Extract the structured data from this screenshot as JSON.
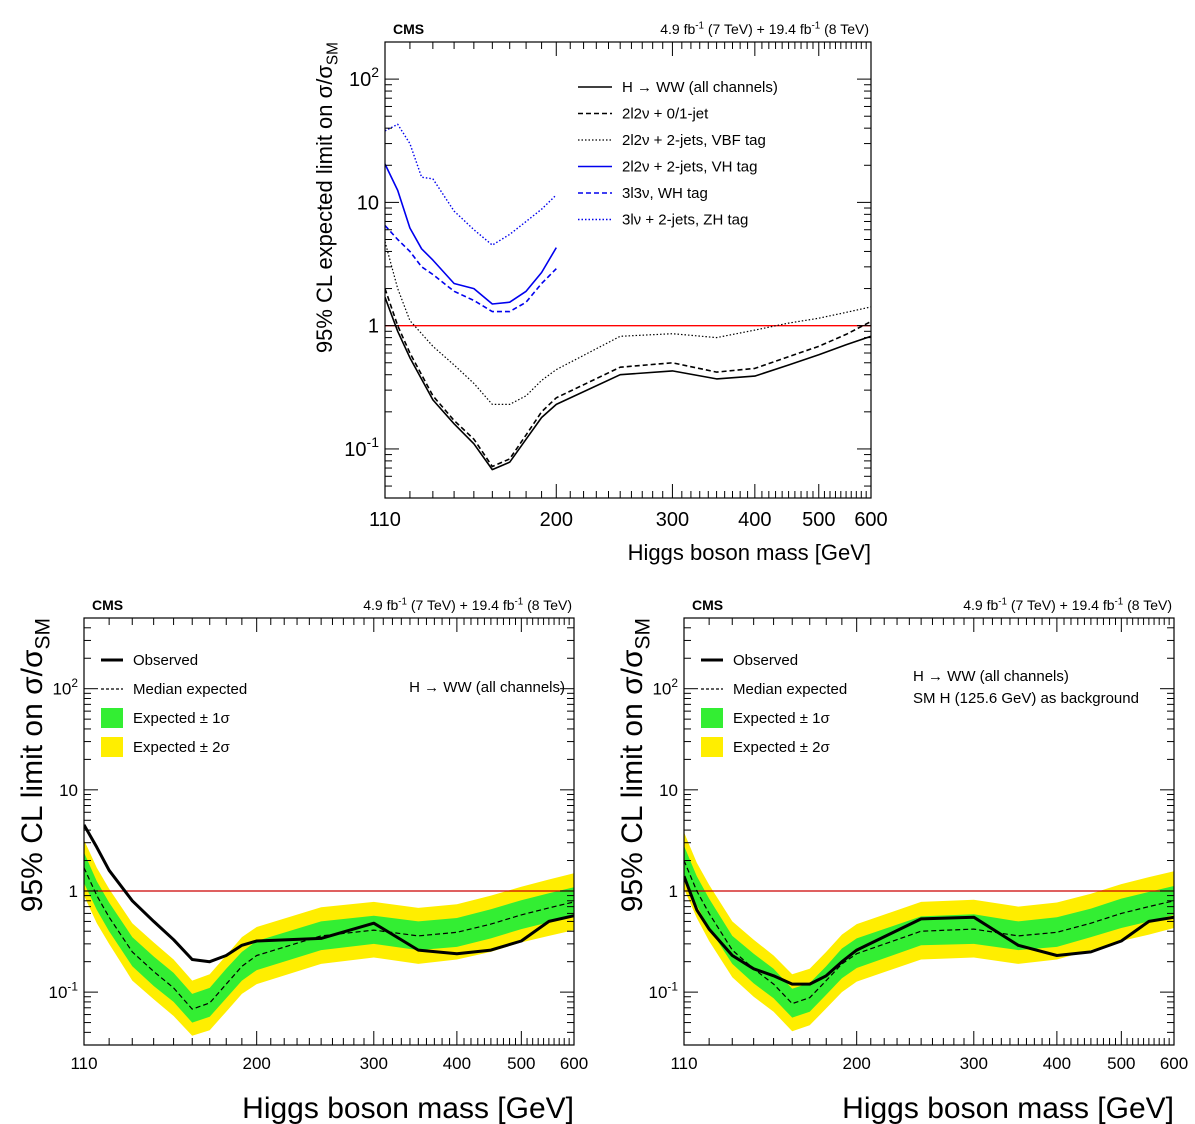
{
  "chart_data": [
    {
      "type": "line",
      "panel": "top",
      "experiment": "CMS",
      "lumi": {
        "part1": "4.9 fb",
        "exp1": "-1",
        "part2": " (7 TeV) + 19.4 fb",
        "exp2": "-1",
        "part3": " (8 TeV)"
      },
      "ylabel": "95% CL expected limit on σ/σ",
      "ylabel_sub": "SM",
      "xlabel": "Higgs boson mass [GeV]",
      "xscale": "log",
      "yscale": "log",
      "xlim": [
        110,
        600
      ],
      "ylim": [
        0.04,
        200
      ],
      "xticklabels": [
        "110",
        "200",
        "300",
        "400",
        "500",
        "600"
      ],
      "yticklabels": [
        {
          "base": "10",
          "exp": "-1"
        },
        {
          "base": "1",
          "exp": ""
        },
        {
          "base": "10",
          "exp": ""
        },
        {
          "base": "10",
          "exp": "2"
        }
      ],
      "reference_line": {
        "y": 1,
        "color": "#ff0000"
      },
      "series": [
        {
          "name": "H → WW (all channels)",
          "color": "#000000",
          "style": "solid",
          "width": 1.6,
          "x": [
            110,
            115,
            120,
            130,
            140,
            150,
            160,
            170,
            180,
            190,
            200,
            250,
            300,
            350,
            400,
            450,
            500,
            550,
            600
          ],
          "y": [
            1.7,
            0.9,
            0.55,
            0.25,
            0.16,
            0.11,
            0.068,
            0.078,
            0.12,
            0.18,
            0.23,
            0.4,
            0.43,
            0.37,
            0.39,
            0.48,
            0.58,
            0.7,
            0.82
          ]
        },
        {
          "name": "2l2ν + 0/1-jet",
          "color": "#000000",
          "style": "dashed",
          "width": 1.6,
          "x": [
            110,
            115,
            120,
            130,
            140,
            150,
            160,
            170,
            180,
            190,
            200,
            250,
            300,
            350,
            400,
            450,
            500,
            550,
            600
          ],
          "y": [
            2.0,
            1.0,
            0.6,
            0.27,
            0.17,
            0.12,
            0.072,
            0.083,
            0.13,
            0.2,
            0.26,
            0.46,
            0.5,
            0.42,
            0.45,
            0.56,
            0.68,
            0.85,
            1.08
          ]
        },
        {
          "name": "2l2ν + 2-jets, VBF tag",
          "color": "#000000",
          "style": "dotted",
          "width": 1.2,
          "x": [
            110,
            115,
            120,
            130,
            140,
            150,
            160,
            170,
            180,
            190,
            200,
            250,
            300,
            350,
            400,
            450,
            500,
            550,
            600
          ],
          "y": [
            4.8,
            2.0,
            1.1,
            0.68,
            0.48,
            0.34,
            0.23,
            0.23,
            0.27,
            0.36,
            0.44,
            0.82,
            0.86,
            0.8,
            0.92,
            1.05,
            1.15,
            1.28,
            1.42
          ]
        },
        {
          "name": "2l2ν + 2-jets, VH tag",
          "color": "#0000ee",
          "style": "solid",
          "width": 1.6,
          "x": [
            110,
            115,
            120,
            125,
            130,
            140,
            150,
            160,
            170,
            180,
            190,
            200
          ],
          "y": [
            20.5,
            12.5,
            6.2,
            4.2,
            3.4,
            2.2,
            2.0,
            1.5,
            1.55,
            1.9,
            2.7,
            4.3
          ]
        },
        {
          "name": "3l3ν, WH tag",
          "color": "#0000ee",
          "style": "dashed",
          "width": 1.6,
          "x": [
            110,
            115,
            120,
            125,
            130,
            140,
            150,
            160,
            170,
            180,
            190,
            200
          ],
          "y": [
            6.5,
            5.0,
            4.0,
            3.0,
            2.6,
            1.9,
            1.6,
            1.3,
            1.3,
            1.55,
            2.2,
            2.9
          ]
        },
        {
          "name": "3lν + 2-jets, ZH tag",
          "color": "#0000ee",
          "style": "dotted",
          "width": 1.4,
          "x": [
            110,
            115,
            120,
            125,
            130,
            140,
            150,
            160,
            170,
            180,
            190,
            200
          ],
          "y": [
            38,
            43,
            30,
            16,
            15.5,
            8.5,
            6.0,
            4.5,
            5.5,
            7.0,
            8.8,
            11.5
          ]
        }
      ]
    },
    {
      "type": "line",
      "panel": "bottom-left",
      "experiment": "CMS",
      "lumi": {
        "part1": "4.9 fb",
        "exp1": "-1",
        "part2": " (7 TeV) + 19.4 fb",
        "exp2": "-1",
        "part3": " (8 TeV)"
      },
      "ylabel": "95% CL limit on σ/σ",
      "ylabel_sub": "SM",
      "xlabel": "Higgs boson mass [GeV]",
      "annotation": [
        "H → WW (all channels)"
      ],
      "xscale": "log",
      "yscale": "log",
      "xlim": [
        110,
        600
      ],
      "ylim": [
        0.03,
        500
      ],
      "xticklabels": [
        "110",
        "200",
        "300",
        "400",
        "500",
        "600"
      ],
      "yticklabels": [
        {
          "base": "10",
          "exp": "-1"
        },
        {
          "base": "1",
          "exp": ""
        },
        {
          "base": "10",
          "exp": ""
        },
        {
          "base": "10",
          "exp": "2"
        }
      ],
      "reference_line": {
        "y": 1,
        "color": "#cc0000"
      },
      "legend": [
        "Observed",
        "Median expected",
        "Expected ± 1σ",
        "Expected ± 2σ"
      ],
      "colors": {
        "band1": "#33ee33",
        "band2": "#ffee00",
        "observed": "#000000",
        "expected": "#000000"
      },
      "x": [
        110,
        115,
        120,
        130,
        140,
        150,
        160,
        170,
        180,
        190,
        200,
        250,
        300,
        350,
        400,
        450,
        500,
        550,
        600
      ],
      "observed": [
        4.5,
        2.7,
        1.6,
        0.8,
        0.5,
        0.33,
        0.21,
        0.2,
        0.23,
        0.29,
        0.32,
        0.34,
        0.48,
        0.26,
        0.24,
        0.26,
        0.32,
        0.5,
        0.57
      ],
      "expected": [
        1.7,
        0.9,
        0.55,
        0.25,
        0.16,
        0.11,
        0.068,
        0.078,
        0.12,
        0.18,
        0.23,
        0.36,
        0.41,
        0.36,
        0.39,
        0.47,
        0.58,
        0.68,
        0.78
      ],
      "band_1sigma_low": [
        1.2,
        0.65,
        0.4,
        0.18,
        0.115,
        0.08,
        0.05,
        0.057,
        0.087,
        0.13,
        0.165,
        0.26,
        0.3,
        0.26,
        0.28,
        0.34,
        0.42,
        0.49,
        0.56
      ],
      "band_1sigma_high": [
        2.4,
        1.25,
        0.77,
        0.35,
        0.225,
        0.155,
        0.096,
        0.11,
        0.17,
        0.25,
        0.32,
        0.5,
        0.57,
        0.5,
        0.54,
        0.66,
        0.81,
        0.95,
        1.09
      ],
      "band_2sigma_low": [
        0.9,
        0.48,
        0.3,
        0.13,
        0.085,
        0.058,
        0.037,
        0.042,
        0.064,
        0.096,
        0.12,
        0.19,
        0.22,
        0.19,
        0.21,
        0.25,
        0.31,
        0.36,
        0.41
      ],
      "band_2sigma_high": [
        3.2,
        1.7,
        1.05,
        0.48,
        0.31,
        0.21,
        0.13,
        0.15,
        0.23,
        0.35,
        0.44,
        0.69,
        0.78,
        0.68,
        0.74,
        0.9,
        1.1,
        1.3,
        1.5
      ]
    },
    {
      "type": "line",
      "panel": "bottom-right",
      "experiment": "CMS",
      "lumi": {
        "part1": "4.9 fb",
        "exp1": "-1",
        "part2": " (7 TeV) + 19.4 fb",
        "exp2": "-1",
        "part3": " (8 TeV)"
      },
      "ylabel": "95% CL limit on σ/σ",
      "ylabel_sub": "SM",
      "xlabel": "Higgs boson mass [GeV]",
      "annotation": [
        "H → WW (all channels)",
        "SM H (125.6 GeV) as background"
      ],
      "xscale": "log",
      "yscale": "log",
      "xlim": [
        110,
        600
      ],
      "ylim": [
        0.03,
        500
      ],
      "xticklabels": [
        "110",
        "200",
        "300",
        "400",
        "500",
        "600"
      ],
      "yticklabels": [
        {
          "base": "10",
          "exp": "-1"
        },
        {
          "base": "1",
          "exp": ""
        },
        {
          "base": "10",
          "exp": ""
        },
        {
          "base": "10",
          "exp": "2"
        }
      ],
      "reference_line": {
        "y": 1,
        "color": "#cc0000"
      },
      "legend": [
        "Observed",
        "Median expected",
        "Expected ± 1σ",
        "Expected ± 2σ"
      ],
      "colors": {
        "band1": "#33ee33",
        "band2": "#ffee00",
        "observed": "#000000",
        "expected": "#000000"
      },
      "x": [
        110,
        115,
        120,
        130,
        140,
        150,
        160,
        170,
        180,
        190,
        200,
        250,
        300,
        350,
        400,
        450,
        500,
        550,
        600
      ],
      "observed": [
        1.4,
        0.65,
        0.42,
        0.23,
        0.17,
        0.145,
        0.12,
        0.12,
        0.145,
        0.2,
        0.26,
        0.53,
        0.55,
        0.29,
        0.23,
        0.25,
        0.32,
        0.5,
        0.55
      ],
      "expected": [
        2.0,
        1.0,
        0.6,
        0.26,
        0.17,
        0.12,
        0.077,
        0.088,
        0.13,
        0.19,
        0.24,
        0.4,
        0.42,
        0.36,
        0.39,
        0.48,
        0.6,
        0.7,
        0.8
      ],
      "band_1sigma_low": [
        1.4,
        0.72,
        0.43,
        0.19,
        0.122,
        0.087,
        0.056,
        0.064,
        0.094,
        0.137,
        0.173,
        0.29,
        0.3,
        0.26,
        0.28,
        0.35,
        0.43,
        0.5,
        0.58
      ],
      "band_1sigma_high": [
        2.8,
        1.4,
        0.84,
        0.36,
        0.24,
        0.17,
        0.108,
        0.123,
        0.18,
        0.27,
        0.34,
        0.56,
        0.59,
        0.5,
        0.55,
        0.67,
        0.84,
        0.98,
        1.12
      ],
      "band_2sigma_low": [
        1.05,
        0.54,
        0.32,
        0.14,
        0.09,
        0.064,
        0.041,
        0.047,
        0.069,
        0.1,
        0.127,
        0.21,
        0.22,
        0.19,
        0.21,
        0.26,
        0.32,
        0.37,
        0.43
      ],
      "band_2sigma_high": [
        3.8,
        1.9,
        1.15,
        0.5,
        0.33,
        0.23,
        0.15,
        0.17,
        0.25,
        0.37,
        0.47,
        0.78,
        0.82,
        0.7,
        0.77,
        0.94,
        1.17,
        1.37,
        1.57
      ]
    }
  ]
}
